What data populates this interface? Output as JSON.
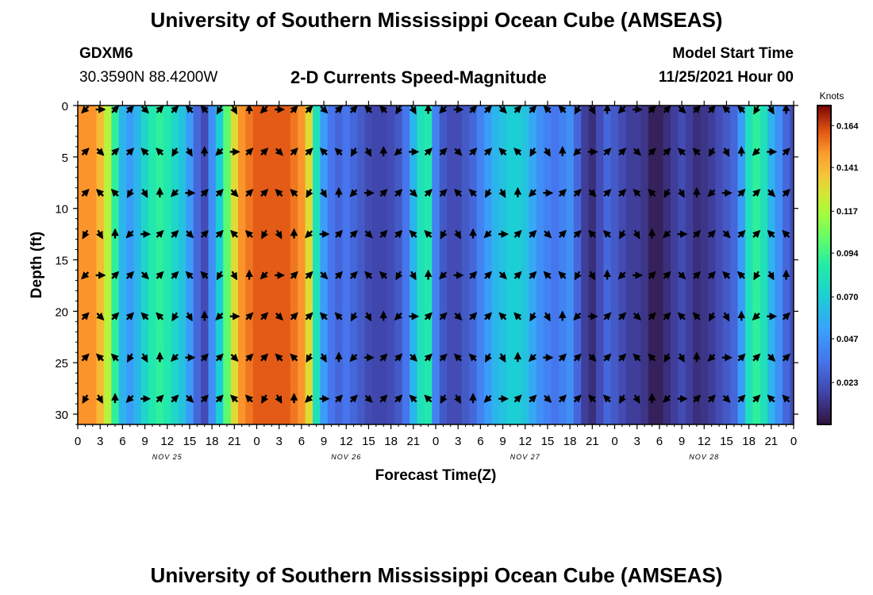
{
  "header": {
    "title": "University of Southern Mississippi Ocean Cube (AMSEAS)",
    "station": "GDXM6",
    "location": "30.3590N  88.4200W",
    "plot_title": "2-D Currents Speed-Magnitude",
    "start_label": "Model Start Time",
    "start_value": "11/25/2021 Hour 00"
  },
  "footer": {
    "title": "University of Southern Mississippi Ocean Cube (AMSEAS)"
  },
  "chart_data": {
    "type": "heatmap",
    "title": "2-D Currents Speed-Magnitude",
    "xlabel": "Forecast Time(Z)",
    "ylabel": "Depth (ft)",
    "x_hours": [
      0,
      96
    ],
    "ylim": [
      0,
      31
    ],
    "x_tick_labels": [
      "0",
      "3",
      "6",
      "9",
      "12",
      "15",
      "18",
      "21",
      "0",
      "3",
      "6",
      "9",
      "12",
      "15",
      "18",
      "21",
      "0",
      "3",
      "6",
      "9",
      "12",
      "15",
      "18",
      "21",
      "0",
      "3",
      "6",
      "9",
      "12",
      "15",
      "18",
      "21",
      "0"
    ],
    "day_labels": [
      {
        "label": "NOV 25",
        "hour": 12
      },
      {
        "label": "NOV 26",
        "hour": 36
      },
      {
        "label": "NOV 27",
        "hour": 60
      },
      {
        "label": "NOV 28",
        "hour": 84
      }
    ],
    "y_ticks": [
      0,
      5,
      10,
      15,
      20,
      25,
      30
    ],
    "colorbar": {
      "title": "Knots",
      "range": [
        0.0,
        0.175
      ],
      "tick_labels": [
        "0.164",
        "0.141",
        "0.117",
        "0.094",
        "0.070",
        "0.047",
        "0.023"
      ],
      "tick_values": [
        0.164,
        0.141,
        0.117,
        0.094,
        0.07,
        0.047,
        0.023
      ]
    },
    "speed_profile_knots": {
      "hours": [
        0,
        1,
        2,
        3,
        4,
        5,
        6,
        7,
        8,
        9,
        10,
        11,
        12,
        13,
        14,
        15,
        16,
        17,
        18,
        19,
        20,
        21,
        22,
        23,
        24,
        25,
        26,
        27,
        28,
        29,
        30,
        31,
        32,
        33,
        34,
        35,
        36,
        37,
        38,
        39,
        40,
        41,
        42,
        43,
        44,
        45,
        46,
        47,
        48,
        49,
        50,
        51,
        52,
        53,
        54,
        55,
        56,
        57,
        58,
        59,
        60,
        61,
        62,
        63,
        64,
        65,
        66,
        67,
        68,
        69,
        70,
        71,
        72,
        73,
        74,
        75,
        76,
        77,
        78,
        79,
        80,
        81,
        82,
        83,
        84,
        85,
        86,
        87,
        88,
        89,
        90,
        91,
        92,
        93,
        94,
        95,
        96
      ],
      "values": [
        0.15,
        0.15,
        0.15,
        0.14,
        0.12,
        0.09,
        0.06,
        0.05,
        0.06,
        0.075,
        0.085,
        0.09,
        0.085,
        0.075,
        0.065,
        0.05,
        0.03,
        0.02,
        0.045,
        0.07,
        0.1,
        0.13,
        0.15,
        0.155,
        0.16,
        0.16,
        0.16,
        0.16,
        0.16,
        0.155,
        0.15,
        0.13,
        0.08,
        0.05,
        0.035,
        0.03,
        0.035,
        0.03,
        0.025,
        0.02,
        0.018,
        0.018,
        0.02,
        0.025,
        0.035,
        0.06,
        0.08,
        0.085,
        0.04,
        0.025,
        0.02,
        0.02,
        0.025,
        0.03,
        0.04,
        0.05,
        0.06,
        0.065,
        0.07,
        0.07,
        0.065,
        0.055,
        0.045,
        0.04,
        0.035,
        0.04,
        0.045,
        0.03,
        0.015,
        0.01,
        0.02,
        0.03,
        0.025,
        0.02,
        0.015,
        0.015,
        0.012,
        0.005,
        0.005,
        0.01,
        0.015,
        0.02,
        0.015,
        0.01,
        0.012,
        0.015,
        0.02,
        0.025,
        0.03,
        0.05,
        0.08,
        0.09,
        0.08,
        0.06,
        0.045,
        0.03,
        0.02
      ]
    },
    "arrow_depths_ft": [
      0,
      4.5,
      8.5,
      12.5,
      16.5,
      20.5,
      24.5,
      28.5
    ],
    "arrow_hours": [
      1,
      3,
      5,
      7,
      9,
      11,
      13,
      15,
      17,
      19,
      21,
      23,
      25,
      27,
      29,
      31,
      33,
      35,
      37,
      39,
      41,
      43,
      45,
      47,
      49,
      51,
      53,
      55,
      57,
      59,
      61,
      63,
      65,
      67,
      69,
      71,
      73,
      75,
      77,
      79,
      81,
      83,
      85,
      87,
      89,
      91,
      93,
      95
    ]
  }
}
